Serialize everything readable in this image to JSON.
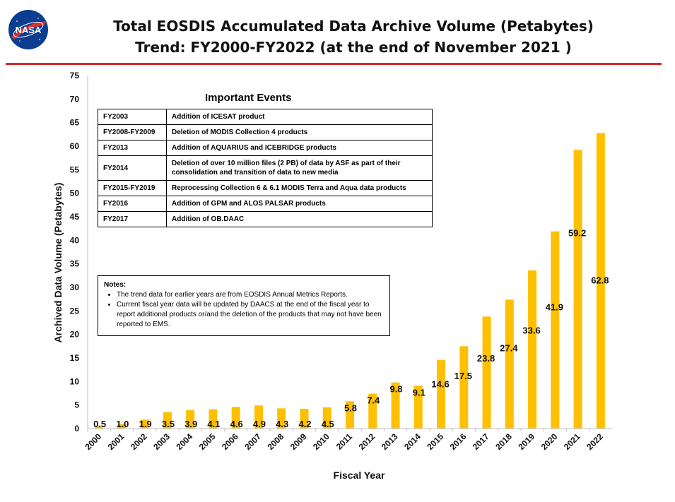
{
  "header": {
    "title_line1": "Total EOSDIS Accumulated Data Archive Volume (Petabytes)",
    "title_line2": "Trend: FY2000-FY2022 (at the end of November 2021 )",
    "logo_text": "NASA"
  },
  "colors": {
    "bar": "#ffc000",
    "rule": "#d42a2a",
    "logo_blue": "#0b3d91",
    "logo_red": "#d8312a"
  },
  "events": {
    "title": "Important Events",
    "rows": [
      {
        "year": "FY2003",
        "event": "Addition of ICESAT product"
      },
      {
        "year": "FY2008-FY2009",
        "event": "Deletion of  MODIS Collection 4 products"
      },
      {
        "year": "FY2013",
        "event": "Addition of AQUARIUS and ICEBRIDGE products"
      },
      {
        "year": "FY2014",
        "event": "Deletion of over 10 million files (2 PB) of data by ASF as part of their consolidation and transition of data to new media"
      },
      {
        "year": "FY2015-FY2019",
        "event": "Reprocessing  Collection 6 & 6.1 MODIS Terra and Aqua data products"
      },
      {
        "year": "FY2016",
        "event": "Addition of GPM and ALOS PALSAR products"
      },
      {
        "year": "FY2017",
        "event": "Addition of OB.DAAC"
      }
    ]
  },
  "notes": {
    "title": "Notes:",
    "items": [
      "The trend data for earlier years are from EOSDIS Annual Metrics Reports.",
      "Current fiscal year data will be updated by DAACS at the end of the fiscal year to report additional products or/and the deletion of the products that may not have been reported to EMS."
    ]
  },
  "chart_data": {
    "type": "bar",
    "title": "Total EOSDIS Accumulated Data Archive Volume (Petabytes) Trend: FY2000-FY2022 (at the end of November 2021 )",
    "xlabel": "Fiscal Year",
    "ylabel": "Archived Data Volume (Petabytes)",
    "ylim": [
      0,
      75
    ],
    "yticks": [
      0,
      5,
      10,
      15,
      20,
      25,
      30,
      35,
      40,
      45,
      50,
      55,
      60,
      65,
      70,
      75
    ],
    "categories": [
      "2000",
      "2001",
      "2002",
      "2003",
      "2004",
      "2005",
      "2006",
      "2007",
      "2008",
      "2009",
      "2010",
      "2011",
      "2012",
      "2013",
      "2014",
      "2015",
      "2016",
      "2017",
      "2018",
      "2019",
      "2020",
      "2021",
      "2022"
    ],
    "values": [
      0.5,
      1.0,
      1.9,
      3.5,
      3.9,
      4.1,
      4.6,
      4.9,
      4.3,
      4.2,
      4.5,
      5.8,
      7.4,
      9.8,
      9.1,
      14.6,
      17.5,
      23.8,
      27.4,
      33.6,
      41.9,
      59.2,
      62.8
    ],
    "labels": [
      "0.5",
      "1.0",
      "1.9",
      "3.5",
      "3.9",
      "4.1",
      "4.6",
      "4.9",
      "4.3",
      "4.2",
      "4.5",
      "5.8",
      "7.4",
      "9.8",
      "9.1",
      "14.6",
      "17.5",
      "23.8",
      "27.4",
      "33.6",
      "41.9",
      "59.2",
      "62.8"
    ],
    "grid": false,
    "legend": "none"
  }
}
